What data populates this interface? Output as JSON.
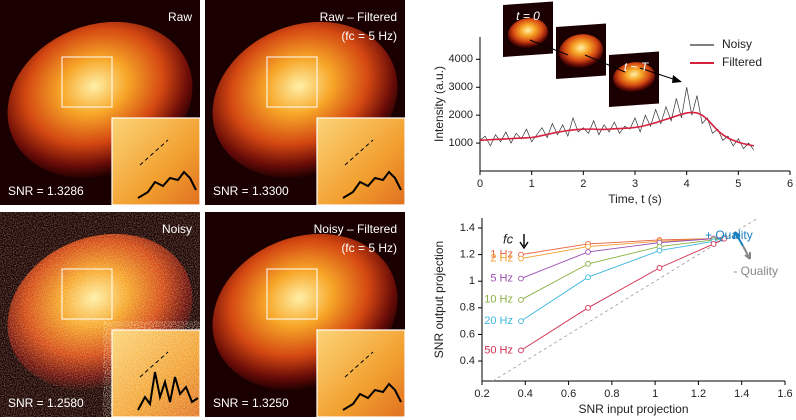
{
  "panels": [
    {
      "title": "Raw",
      "snr": "SNR = 1.3286"
    },
    {
      "title": "Raw – Filtered",
      "subtitle": "(fc = 5 Hz)",
      "snr": "SNR = 1.3300"
    },
    {
      "title": "Noisy",
      "snr": "SNR = 1.2580"
    },
    {
      "title": "Noisy – Filtered",
      "subtitle": "(fc = 5 Hz)",
      "snr": "SNR = 1.3250"
    }
  ],
  "chart_data": [
    {
      "type": "line",
      "xlabel": "Time, t (s)",
      "ylabel": "Intensity (a.u.)",
      "annotations": [
        "t = 0",
        "t ~ T"
      ],
      "legend": "upper right",
      "x": [
        0,
        0.1,
        0.2,
        0.3,
        0.4,
        0.5,
        0.6,
        0.7,
        0.8,
        0.9,
        1,
        1.1,
        1.2,
        1.3,
        1.4,
        1.5,
        1.6,
        1.7,
        1.8,
        1.9,
        2,
        2.1,
        2.2,
        2.3,
        2.4,
        2.5,
        2.6,
        2.7,
        2.8,
        2.9,
        3,
        3.1,
        3.2,
        3.3,
        3.4,
        3.5,
        3.6,
        3.7,
        3.8,
        3.9,
        4,
        4.1,
        4.2,
        4.3,
        4.4,
        4.5,
        4.6,
        4.7,
        4.8,
        4.9,
        5,
        5.1,
        5.2,
        5.3
      ],
      "series": [
        {
          "name": "Noisy",
          "color": "#333333",
          "values": [
            1100,
            1250,
            900,
            1300,
            1050,
            1400,
            1000,
            1350,
            1150,
            1500,
            1050,
            1300,
            1550,
            1200,
            1700,
            1300,
            1650,
            1250,
            1900,
            1400,
            1550,
            1350,
            1800,
            1300,
            1650,
            1400,
            1750,
            1350,
            1600,
            1500,
            1900,
            1400,
            2000,
            1600,
            2200,
            1700,
            2300,
            1800,
            2600,
            1900,
            3000,
            2000,
            2700,
            1700,
            1900,
            1350,
            1500,
            1100,
            1250,
            900,
            1150,
            800,
            1000,
            750
          ]
        },
        {
          "name": "Filtered",
          "color": "#d6213d",
          "values": [
            1100,
            1110,
            1120,
            1130,
            1140,
            1150,
            1160,
            1170,
            1180,
            1190,
            1200,
            1230,
            1270,
            1310,
            1350,
            1390,
            1420,
            1450,
            1470,
            1490,
            1500,
            1500,
            1500,
            1490,
            1490,
            1500,
            1510,
            1520,
            1530,
            1540,
            1560,
            1590,
            1630,
            1680,
            1730,
            1790,
            1850,
            1910,
            1970,
            2030,
            2080,
            2100,
            2080,
            2000,
            1850,
            1650,
            1450,
            1300,
            1180,
            1100,
            1030,
            980,
            940,
            900
          ]
        }
      ],
      "xlim": [
        0,
        6
      ],
      "xticks": [
        0,
        1,
        2,
        3,
        4,
        5,
        6
      ],
      "ylim": [
        0,
        4800
      ],
      "yticks": [
        1000,
        2000,
        3000,
        4000
      ]
    },
    {
      "type": "line",
      "xlabel": "SNR input projection",
      "ylabel": "SNR output projection",
      "annotations": [
        "fc",
        "+ Quality",
        "- Quality"
      ],
      "x": [
        0.38,
        0.69,
        1.02,
        1.27,
        1.32
      ],
      "series": [
        {
          "name": "1 Hz",
          "color": "#e8603c",
          "values": [
            1.2,
            1.28,
            1.31,
            1.32,
            1.33
          ]
        },
        {
          "name": "2 Hz",
          "color": "#f0a030",
          "values": [
            1.17,
            1.26,
            1.3,
            1.32,
            1.33
          ]
        },
        {
          "name": "5 Hz",
          "color": "#9b4fb0",
          "values": [
            1.02,
            1.22,
            1.29,
            1.32,
            1.33
          ]
        },
        {
          "name": "10 Hz",
          "color": "#8ab040",
          "values": [
            0.86,
            1.13,
            1.26,
            1.31,
            1.33
          ]
        },
        {
          "name": "20 Hz",
          "color": "#3cb8e0",
          "values": [
            0.7,
            1.03,
            1.23,
            1.3,
            1.33
          ]
        },
        {
          "name": "50 Hz",
          "color": "#d03050",
          "values": [
            0.48,
            0.8,
            1.1,
            1.28,
            1.32
          ]
        }
      ],
      "xlim": [
        0.2,
        1.6
      ],
      "xticks": [
        0.2,
        0.4,
        0.6,
        0.8,
        1,
        1.2,
        1.4,
        1.6
      ],
      "ylim": [
        0.25,
        1.475
      ],
      "yticks": [
        0.4,
        0.6,
        0.8,
        1,
        1.2,
        1.4
      ]
    }
  ]
}
